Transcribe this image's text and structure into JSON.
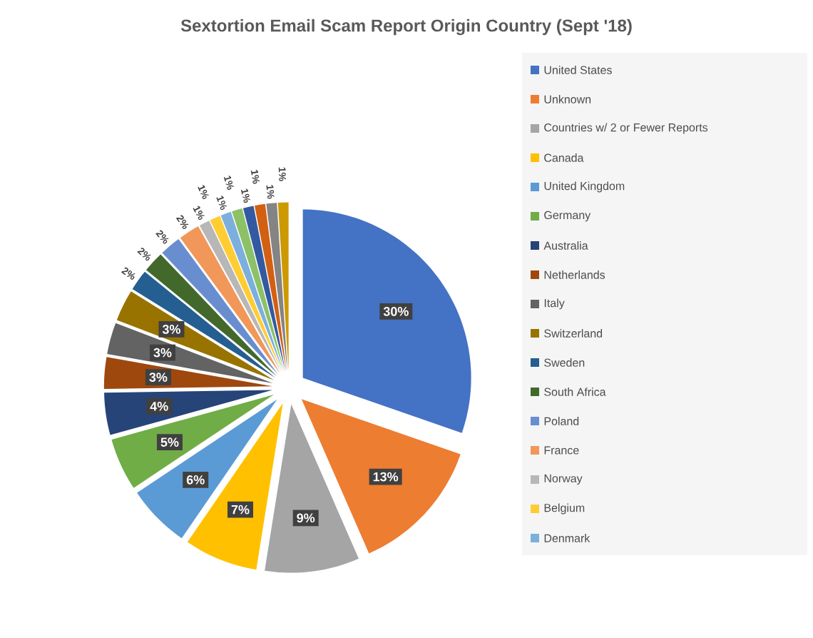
{
  "chart_data": {
    "type": "pie",
    "title": "Sextortion Email Scam Report Origin Country (Sept '18)",
    "categories": [
      "United States",
      "Unknown",
      "Countries w/ 2 or Fewer Reports",
      "Canada",
      "United Kingdom",
      "Germany",
      "Australia",
      "Netherlands",
      "Italy",
      "Switzerland",
      "Sweden",
      "South Africa",
      "Poland",
      "France",
      "Norway",
      "Belgium",
      "Denmark",
      null,
      null,
      null,
      null,
      null
    ],
    "values": [
      30,
      13,
      9,
      7,
      6,
      5,
      4,
      3,
      3,
      3,
      2,
      2,
      2,
      2,
      1,
      1,
      1,
      1,
      1,
      1,
      1,
      1
    ],
    "value_labels": [
      "30%",
      "13%",
      "9%",
      "7%",
      "6%",
      "5%",
      "4%",
      "3%",
      "3%",
      "3%",
      "2%",
      "2%",
      "2%",
      "2%",
      "1%",
      "1%",
      "1%",
      "1%",
      "1%",
      "1%",
      "1%",
      "1%"
    ],
    "colors": [
      "#4472c4",
      "#ed7d31",
      "#a5a5a5",
      "#ffc000",
      "#5b9bd5",
      "#70ad47",
      "#264478",
      "#9e480e",
      "#636363",
      "#997300",
      "#255e91",
      "#43682b",
      "#698ed0",
      "#f1975a",
      "#b7b7b7",
      "#ffcd33",
      "#7cafdd",
      "#8cc168",
      "#335aa1",
      "#d26012",
      "#848484",
      "#cc9a00"
    ],
    "legend": "right"
  }
}
